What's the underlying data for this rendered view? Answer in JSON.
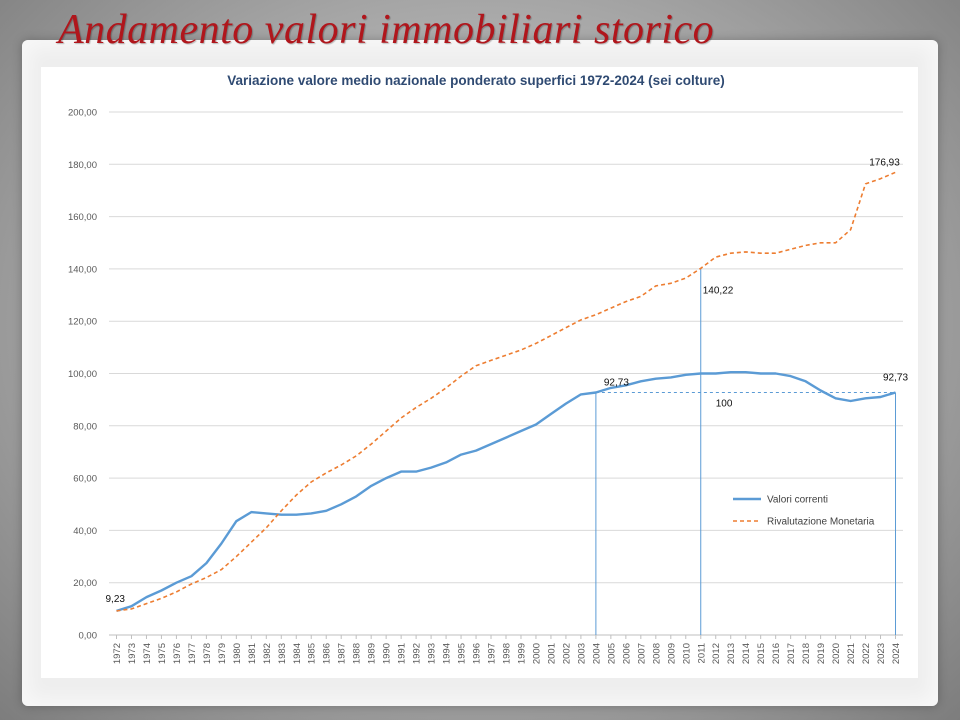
{
  "slide": {
    "title": "Andamento valori immobiliari storico"
  },
  "colors": {
    "title": "#b0161c",
    "series_correnti": "#5b9bd5",
    "series_rivalutazione": "#ed7d31",
    "chart_title": "#2f4a72"
  },
  "chart_data": {
    "type": "line",
    "title": "Variazione valore medio nazionale ponderato superfici 1972-2024 (sei colture)",
    "xlabel": "",
    "ylabel": "",
    "ylim": [
      0,
      200
    ],
    "grid": true,
    "legend_position": "right",
    "yticks": [
      "0,00",
      "20,00",
      "40,00",
      "60,00",
      "80,00",
      "100,00",
      "120,00",
      "140,00",
      "160,00",
      "180,00",
      "200,00"
    ],
    "categories": [
      "1972",
      "1973",
      "1974",
      "1975",
      "1976",
      "1977",
      "1978",
      "1979",
      "1980",
      "1981",
      "1982",
      "1983",
      "1984",
      "1985",
      "1986",
      "1987",
      "1988",
      "1989",
      "1990",
      "1991",
      "1992",
      "1993",
      "1994",
      "1995",
      "1996",
      "1997",
      "1998",
      "1999",
      "2000",
      "2001",
      "2002",
      "2003",
      "2004",
      "2005",
      "2006",
      "2007",
      "2008",
      "2009",
      "2010",
      "2011",
      "2012",
      "2013",
      "2014",
      "2015",
      "2016",
      "2017",
      "2018",
      "2019",
      "2020",
      "2021",
      "2022",
      "2023",
      "2024"
    ],
    "series": [
      {
        "name": "Valori correnti",
        "style": "solid",
        "values": [
          9.23,
          11.0,
          14.5,
          17.0,
          20.0,
          22.5,
          27.5,
          35.0,
          43.5,
          47.0,
          46.5,
          46.0,
          46.0,
          46.5,
          47.5,
          50.0,
          53.0,
          57.0,
          60.0,
          62.5,
          62.5,
          64.0,
          66.0,
          69.0,
          70.5,
          73.0,
          75.5,
          78.0,
          80.5,
          84.5,
          88.5,
          92.0,
          92.73,
          94.5,
          95.5,
          97.0,
          98.0,
          98.5,
          99.5,
          100.0,
          100.0,
          100.5,
          100.5,
          100.0,
          100.0,
          99.0,
          97.0,
          93.5,
          90.5,
          89.5,
          90.5,
          91.0,
          92.73
        ]
      },
      {
        "name": "Rivalutazione Monetaria",
        "style": "dashed",
        "values": [
          9.23,
          10.0,
          12.0,
          14.0,
          16.5,
          19.5,
          22.0,
          25.0,
          30.0,
          35.5,
          41.0,
          47.5,
          53.5,
          58.5,
          62.0,
          65.0,
          68.5,
          73.0,
          78.0,
          83.0,
          87.0,
          90.5,
          94.5,
          99.0,
          103.0,
          105.0,
          107.0,
          109.0,
          111.5,
          114.5,
          117.5,
          120.5,
          122.5,
          125.0,
          127.5,
          129.5,
          133.5,
          134.5,
          136.5,
          140.22,
          144.5,
          146.0,
          146.5,
          146.0,
          146.0,
          147.5,
          149.0,
          150.0,
          150.0,
          155.0,
          172.5,
          174.5,
          176.93
        ]
      }
    ],
    "annotations": [
      {
        "label": "9,23",
        "year": "1972",
        "value": 9.23
      },
      {
        "label": "92,73",
        "year": "2004",
        "value": 92.73
      },
      {
        "label": "140,22",
        "year": "2011",
        "value": 140.22
      },
      {
        "label": "100",
        "year": "2011",
        "value": 100
      },
      {
        "label": "92,73",
        "year": "2024",
        "value": 92.73
      },
      {
        "label": "176,93",
        "year": "2024",
        "value": 176.93
      }
    ],
    "reference_line": {
      "value": 92.73,
      "from": "2004",
      "to": "2024"
    },
    "vertical_markers": [
      "2004",
      "2011",
      "2024"
    ]
  }
}
